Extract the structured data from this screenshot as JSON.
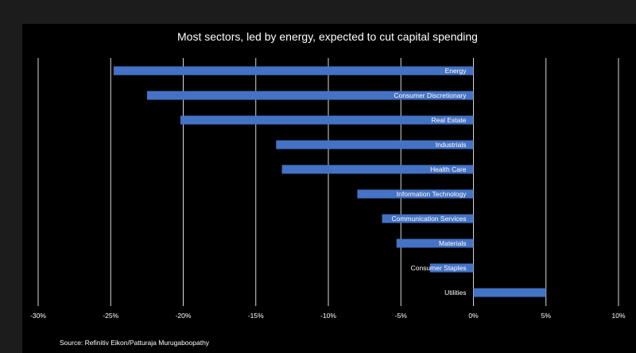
{
  "chart_data": {
    "type": "bar",
    "orientation": "horizontal",
    "title": "Most sectors, led by energy, expected to cut capital spending",
    "categories": [
      "Energy",
      "Consumer Discretionary",
      "Real Estate",
      "Industrials",
      "Health Care",
      "Information Technology",
      "Communication Services",
      "Materials",
      "Consumer Staples",
      "Utilities"
    ],
    "values": [
      -24.8,
      -22.5,
      -20.2,
      -13.6,
      -13.2,
      -8.0,
      -6.3,
      -5.3,
      -3.0,
      5.0
    ],
    "xlim": [
      -30,
      10
    ],
    "xticks": [
      -30,
      -25,
      -20,
      -15,
      -10,
      -5,
      0,
      5,
      10
    ],
    "xtick_labels": [
      "-30%",
      "-25%",
      "-20%",
      "-15%",
      "-10%",
      "-5%",
      "0%",
      "5%",
      "10%"
    ],
    "bar_color": "#4472c4",
    "grid_color": "#d9d9d9",
    "source": "Source: Refinitiv Eikon/Patturaja Murugaboopathy"
  }
}
